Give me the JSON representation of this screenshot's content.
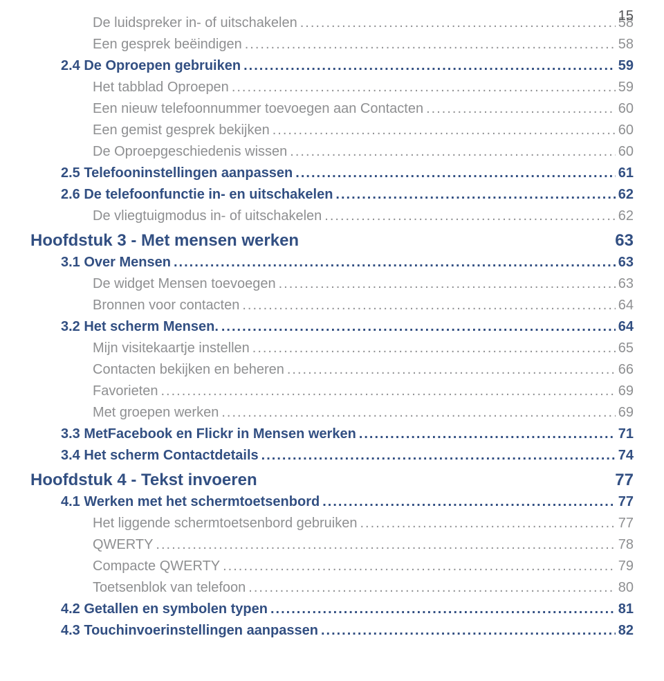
{
  "page_number": "15",
  "leader": "........................................................................................................................................................................................................................................................................................",
  "colors": {
    "primary": "#324f82",
    "muted": "#8e8f91",
    "body_text": "#515355",
    "background": "#ffffff"
  },
  "entries": [
    {
      "type": "sub",
      "label": "De luidspreker in- of uitschakelen",
      "page": "58"
    },
    {
      "type": "sub",
      "label": "Een gesprek beëindigen",
      "page": "58"
    },
    {
      "type": "section",
      "label": "2.4  De Oproepen gebruiken",
      "page": "59"
    },
    {
      "type": "sub",
      "label": "Het tabblad Oproepen",
      "page": "59"
    },
    {
      "type": "sub",
      "label": "Een nieuw telefoonnummer toevoegen aan Contacten",
      "page": "60"
    },
    {
      "type": "sub",
      "label": "Een gemist gesprek bekijken",
      "page": "60"
    },
    {
      "type": "sub",
      "label": "De Oproepgeschiedenis wissen",
      "page": "60"
    },
    {
      "type": "section",
      "label": "2.5  Telefooninstellingen aanpassen",
      "page": "61"
    },
    {
      "type": "section",
      "label": "2.6  De telefoonfunctie in- en uitschakelen",
      "page": "62"
    },
    {
      "type": "sub",
      "label": "De vliegtuigmodus in- of uitschakelen",
      "page": "62"
    },
    {
      "type": "chapter",
      "label": "Hoofdstuk 3 - Met mensen werken",
      "page": "63"
    },
    {
      "type": "section",
      "label": "3.1  Over Mensen",
      "page": "63"
    },
    {
      "type": "sub",
      "label": "De widget Mensen toevoegen",
      "page": "63"
    },
    {
      "type": "sub",
      "label": "Bronnen voor contacten",
      "page": "64"
    },
    {
      "type": "section",
      "label": "3.2  Het scherm Mensen.",
      "page": "64"
    },
    {
      "type": "sub",
      "label": "Mijn visitekaartje instellen",
      "page": "65"
    },
    {
      "type": "sub",
      "label": "Contacten bekijken en beheren",
      "page": "66"
    },
    {
      "type": "sub",
      "label": "Favorieten",
      "page": "69"
    },
    {
      "type": "sub",
      "label": "Met groepen werken",
      "page": "69"
    },
    {
      "type": "section",
      "label": "3.3  MetFacebook en Flickr in Mensen werken",
      "page": "71"
    },
    {
      "type": "section",
      "label": "3.4  Het scherm Contactdetails",
      "page": "74"
    },
    {
      "type": "chapter",
      "label": "Hoofdstuk 4 - Tekst invoeren",
      "page": "77"
    },
    {
      "type": "section",
      "label": "4.1  Werken met het schermtoetsenbord",
      "page": "77"
    },
    {
      "type": "sub",
      "label": "Het liggende schermtoetsenbord gebruiken",
      "page": "77"
    },
    {
      "type": "sub",
      "label": "QWERTY",
      "page": "78"
    },
    {
      "type": "sub",
      "label": "Compacte QWERTY",
      "page": "79"
    },
    {
      "type": "sub",
      "label": "Toetsenblok van telefoon",
      "page": "80"
    },
    {
      "type": "section",
      "label": "4.2  Getallen en symbolen typen",
      "page": "81"
    },
    {
      "type": "section",
      "label": "4.3  Touchinvoerinstellingen aanpassen",
      "page": "82"
    }
  ]
}
